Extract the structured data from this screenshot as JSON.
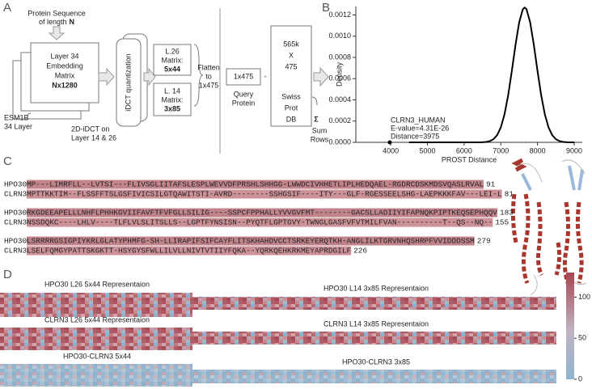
{
  "panel_labels": [
    "A",
    "B",
    "C",
    "D"
  ],
  "diagram": {
    "input": [
      "Protein Sequence",
      "of length",
      "N"
    ],
    "embedding": [
      "Layer 34",
      "Embedding",
      "Matrix",
      "Nx1280"
    ],
    "model": [
      "ESM1B",
      "34 Layer"
    ],
    "idct_note": [
      "2D-iDCT on",
      "Layer 14 & 26"
    ],
    "quantization": "iDCT quantization",
    "l26": [
      "L.26",
      "Matrix:",
      "5x44"
    ],
    "l14": [
      "L. 14",
      "Matrix:",
      "3x85"
    ],
    "flatten": [
      "Flatten",
      "to",
      "1x475"
    ],
    "query_vector": "1x475",
    "query_label": [
      "Query",
      "Protein"
    ],
    "minus": "-",
    "database": [
      "565k",
      "X",
      "475",
      "Swiss",
      "Prot",
      "DB"
    ],
    "sum": [
      "Σ",
      "Sum",
      "Rows"
    ]
  },
  "chart_data": {
    "type": "line",
    "y_label": "Density",
    "x_label": "PROST Distance",
    "x": [
      4500,
      6400,
      6500,
      6600,
      6700,
      6800,
      6900,
      7000,
      7100,
      7200,
      7300,
      7400,
      7500,
      7600,
      7650,
      7700,
      7800,
      7900,
      8000,
      8100,
      8200,
      8300,
      8400,
      8500,
      8600,
      8700,
      8800,
      9000
    ],
    "series": [
      {
        "color": "#000000",
        "values": [
          0,
          0,
          1.3e-06,
          4.1e-06,
          1.16e-05,
          2.96e-05,
          6.8e-05,
          0.000141,
          0.000263,
          0.000443,
          0.000672,
          0.000917,
          0.00113,
          0.001254,
          0.00127,
          0.001254,
          0.00113,
          0.000917,
          0.000672,
          0.000443,
          0.000263,
          0.000141,
          6.8e-05,
          2.96e-05,
          1.16e-05,
          4.1e-06,
          1.3e-06,
          0
        ]
      }
    ],
    "point": {
      "x": 3975,
      "y": 0
    },
    "annotation": [
      "CLRN3_HUMAN",
      "E-value=4.31E-26",
      "Distance=3975"
    ],
    "xlim": [
      3050,
      9220
    ],
    "ylim": [
      0,
      0.00128
    ],
    "xticks": [
      4000,
      5000,
      6000,
      7000,
      8000,
      9000
    ],
    "yticks": [
      {
        "value": 0,
        "label": "0.0000"
      },
      {
        "value": 0.0002,
        "label": "0.0002"
      },
      {
        "value": 0.0004,
        "label": "0.0004"
      },
      {
        "value": 0.0006,
        "label": "0.0006"
      },
      {
        "value": 0.0008,
        "label": "0.0008"
      },
      {
        "value": 0.001,
        "label": "0.0010"
      },
      {
        "value": 0.0012,
        "label": "0.0012"
      }
    ]
  },
  "alignment": {
    "blocks": [
      {
        "rows": [
          {
            "name": "HPO30",
            "seq": "MP---LIMRFLL--LVTSI---FLIVSGLIITAFSLESPLWEVVDFPRSHLSHHGG-LWWDCIVHHETLIPLHEDQAEL-RGDRCDSKMDSVQASLRVAL",
            "end": "91"
          },
          {
            "name": "CLRN3",
            "seq": "MPTTKKTIM--FLSSFFTSLGSFIVICSILGTQAWITSTI-AVRD--------SSHGSIF----ITY---GLF-RGESSEELSHG-LAEPKKKFAV---LEI-L",
            "end": "81"
          }
        ]
      },
      {
        "rows": [
          {
            "name": "HPO30",
            "seq": "RKGDEEAPELLLNHFLPHHKGVIIFAVFTFVFGLLSILIG----SSPCFPPHALLYVVGVFMT--------GACSLLADIIYIFAPNQKPIPTKEQSEPHQQV",
            "end": "183"
          },
          {
            "name": "CLRN3",
            "seq": "NSSDQKC----LHLV----TLFLVLSLITSLLS--LGPTFYNSISN--PYQTFLGPTGVY-TWNGLGASFVFVTMILFVAN----------T--QS--NQ--",
            "end": "155"
          }
        ]
      },
      {
        "rows": [
          {
            "name": "HPO30",
            "seq": "LSRRRRGSIGPIYKRLGLATYPHMFG-SH-LLIRAPIFSIFCAYFLITSKHAHDVCCTSRKEYERQTKH-ANGLILKTGRVNHQSHRPFVVIDDDSSM",
            "end": "279"
          },
          {
            "name": "CLRN3",
            "seq": "LSELFQMGYPATTSKGKTT-HSYGYSFWLLILVLLNIVTVTIIYFQKA--YQRKQEHKRKMEYAPRDGILF",
            "end": "226"
          }
        ]
      }
    ]
  },
  "heatmaps": {
    "titles": [
      "HPO30 L26 5x44 Representaion",
      "CLRN3 L26 5x44 Representaion",
      "HPO30-CLRN3 5x44",
      "HPO30 L14 3x85 Representaion",
      "CLRN3 L14 3x85 Representaion",
      "HPO30-CLRN3 3x85"
    ],
    "colorbar": {
      "lim": [
        0,
        130
      ],
      "ticks": [
        0,
        50,
        100
      ]
    }
  }
}
